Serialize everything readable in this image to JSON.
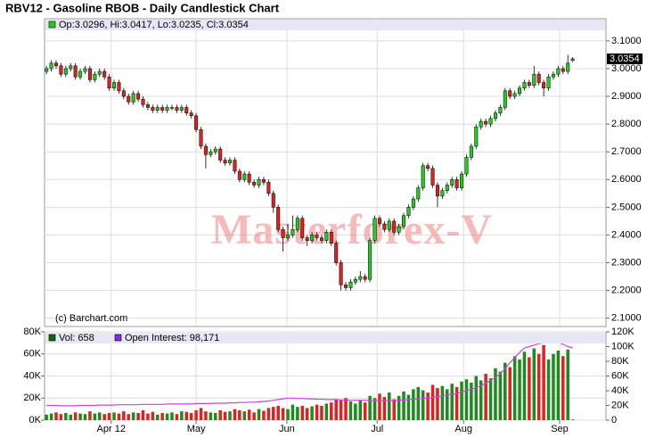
{
  "chart_data": {
    "type": "candlestick",
    "title": "RBV12 - Gasoline RBOB - Daily Candlestick Chart",
    "price_legend": "Op:3.0296, Hi:3.0417, Lo:3.0235, Cl:3.0354",
    "credit": "(c) Barchart.com",
    "watermark": "Masterforex-V",
    "up_color": "#22cc22",
    "down_color": "#dd2222",
    "grid": true,
    "xlim": [
      -0.4,
      115.9
    ],
    "xticks": [
      {
        "value": 13.4,
        "label": "Apr 12"
      },
      {
        "value": 31.0,
        "label": "May"
      },
      {
        "value": 49.8,
        "label": "Jun"
      },
      {
        "value": 68.5,
        "label": "Jul"
      },
      {
        "value": 86.4,
        "label": "Aug"
      },
      {
        "value": 106.3,
        "label": "Sep"
      }
    ],
    "ylim": [
      2.07,
      3.18
    ],
    "yticks": [
      {
        "value": 2.1,
        "label": "2.1000"
      },
      {
        "value": 2.2,
        "label": "2.2000"
      },
      {
        "value": 2.3,
        "label": "2.3000"
      },
      {
        "value": 2.4,
        "label": "2.4000"
      },
      {
        "value": 2.5,
        "label": "2.5000"
      },
      {
        "value": 2.6,
        "label": "2.6000"
      },
      {
        "value": 2.7,
        "label": "2.7000"
      },
      {
        "value": 2.8,
        "label": "2.8000"
      },
      {
        "value": 2.9,
        "label": "2.9000"
      },
      {
        "value": 3.0,
        "label": "3.0000"
      },
      {
        "value": 3.1,
        "label": "3.1000"
      }
    ],
    "open": [
      2.99,
      3.0,
      3.02,
      3.01,
      2.98,
      3.0,
      3.01,
      2.97,
      2.99,
      3.0,
      2.96,
      2.98,
      2.99,
      2.97,
      2.93,
      2.95,
      2.92,
      2.9,
      2.88,
      2.91,
      2.89,
      2.87,
      2.86,
      2.85,
      2.86,
      2.85,
      2.86,
      2.86,
      2.85,
      2.86,
      2.84,
      2.83,
      2.78,
      2.72,
      2.69,
      2.7,
      2.71,
      2.67,
      2.66,
      2.67,
      2.63,
      2.6,
      2.62,
      2.59,
      2.58,
      2.6,
      2.59,
      2.55,
      2.5,
      2.42,
      2.39,
      2.4,
      2.42,
      2.46,
      2.39,
      2.38,
      2.4,
      2.39,
      2.38,
      2.41,
      2.37,
      2.3,
      2.22,
      2.21,
      2.23,
      2.24,
      2.25,
      2.24,
      2.38,
      2.46,
      2.44,
      2.42,
      2.45,
      2.41,
      2.43,
      2.47,
      2.5,
      2.53,
      2.57,
      2.65,
      2.64,
      2.58,
      2.54,
      2.56,
      2.58,
      2.6,
      2.57,
      2.62,
      2.68,
      2.72,
      2.79,
      2.81,
      2.8,
      2.82,
      2.84,
      2.86,
      2.92,
      2.9,
      2.91,
      2.93,
      2.95,
      2.94,
      2.98,
      2.95,
      2.93,
      2.97,
      2.98,
      3.0,
      2.99,
      3.0296
    ],
    "high": [
      3.01,
      3.03,
      3.03,
      3.02,
      3.01,
      3.02,
      3.02,
      3.0,
      3.01,
      3.01,
      2.99,
      3.0,
      3.0,
      2.98,
      2.96,
      2.96,
      2.93,
      2.91,
      2.92,
      2.92,
      2.9,
      2.88,
      2.87,
      2.87,
      2.87,
      2.87,
      2.87,
      2.87,
      2.87,
      2.87,
      2.85,
      2.84,
      2.79,
      2.73,
      2.71,
      2.72,
      2.72,
      2.68,
      2.68,
      2.68,
      2.64,
      2.63,
      2.63,
      2.6,
      2.61,
      2.61,
      2.6,
      2.56,
      2.51,
      2.43,
      2.44,
      2.47,
      2.47,
      2.47,
      2.4,
      2.41,
      2.41,
      2.4,
      2.42,
      2.42,
      2.38,
      2.31,
      2.23,
      2.24,
      2.25,
      2.27,
      2.26,
      2.39,
      2.47,
      2.47,
      2.45,
      2.46,
      2.46,
      2.44,
      2.48,
      2.51,
      2.54,
      2.58,
      2.66,
      2.66,
      2.65,
      2.59,
      2.57,
      2.59,
      2.61,
      2.61,
      2.63,
      2.69,
      2.73,
      2.8,
      2.82,
      2.82,
      2.83,
      2.85,
      2.87,
      2.93,
      2.93,
      2.92,
      2.94,
      2.96,
      2.96,
      3.01,
      2.99,
      2.96,
      2.98,
      2.99,
      3.01,
      3.01,
      3.05,
      3.0417
    ],
    "low": [
      2.98,
      2.99,
      3.0,
      2.97,
      2.97,
      2.99,
      2.96,
      2.96,
      2.98,
      2.95,
      2.95,
      2.97,
      2.96,
      2.92,
      2.92,
      2.91,
      2.89,
      2.87,
      2.87,
      2.88,
      2.86,
      2.85,
      2.84,
      2.84,
      2.84,
      2.84,
      2.85,
      2.84,
      2.84,
      2.83,
      2.82,
      2.77,
      2.71,
      2.64,
      2.68,
      2.69,
      2.66,
      2.65,
      2.65,
      2.62,
      2.59,
      2.59,
      2.58,
      2.57,
      2.57,
      2.58,
      2.54,
      2.48,
      2.41,
      2.34,
      2.38,
      2.39,
      2.41,
      2.38,
      2.36,
      2.37,
      2.38,
      2.37,
      2.37,
      2.36,
      2.29,
      2.2,
      2.2,
      2.2,
      2.22,
      2.23,
      2.23,
      2.23,
      2.37,
      2.43,
      2.41,
      2.41,
      2.4,
      2.4,
      2.42,
      2.46,
      2.49,
      2.52,
      2.56,
      2.63,
      2.57,
      2.5,
      2.53,
      2.55,
      2.57,
      2.56,
      2.56,
      2.61,
      2.67,
      2.71,
      2.78,
      2.79,
      2.79,
      2.81,
      2.83,
      2.85,
      2.89,
      2.89,
      2.9,
      2.92,
      2.93,
      2.93,
      2.94,
      2.9,
      2.92,
      2.96,
      2.97,
      2.98,
      2.98,
      3.0235
    ],
    "close": [
      3.0,
      3.02,
      3.01,
      2.98,
      3.0,
      3.01,
      2.97,
      2.99,
      3.0,
      2.96,
      2.98,
      2.99,
      2.97,
      2.93,
      2.95,
      2.92,
      2.9,
      2.88,
      2.91,
      2.89,
      2.87,
      2.86,
      2.85,
      2.86,
      2.85,
      2.86,
      2.86,
      2.85,
      2.86,
      2.84,
      2.83,
      2.78,
      2.72,
      2.69,
      2.7,
      2.71,
      2.67,
      2.66,
      2.67,
      2.63,
      2.6,
      2.62,
      2.59,
      2.58,
      2.6,
      2.59,
      2.55,
      2.5,
      2.42,
      2.39,
      2.4,
      2.42,
      2.46,
      2.39,
      2.38,
      2.4,
      2.39,
      2.38,
      2.41,
      2.37,
      2.3,
      2.22,
      2.21,
      2.23,
      2.24,
      2.25,
      2.24,
      2.38,
      2.46,
      2.44,
      2.42,
      2.45,
      2.41,
      2.43,
      2.47,
      2.5,
      2.53,
      2.57,
      2.65,
      2.64,
      2.58,
      2.54,
      2.56,
      2.58,
      2.6,
      2.57,
      2.62,
      2.68,
      2.72,
      2.79,
      2.81,
      2.8,
      2.82,
      2.84,
      2.86,
      2.92,
      2.9,
      2.91,
      2.93,
      2.95,
      2.94,
      2.98,
      2.95,
      2.93,
      2.97,
      2.98,
      3.0,
      2.99,
      3.02,
      3.0354
    ],
    "volume": {
      "legend": "Vol: 658",
      "ylim": [
        0,
        80000
      ],
      "yticks": [
        {
          "value": 0,
          "label": "0K"
        },
        {
          "value": 20000,
          "label": "20K"
        },
        {
          "value": 40000,
          "label": "40K"
        },
        {
          "value": 60000,
          "label": "60K"
        },
        {
          "value": 80000,
          "label": "80K"
        }
      ],
      "values": [
        5000,
        6000,
        7000,
        5500,
        6500,
        5000,
        7000,
        6000,
        5500,
        8000,
        6000,
        7000,
        5500,
        6500,
        7000,
        6000,
        8000,
        5500,
        7000,
        6500,
        9000,
        6000,
        7500,
        5000,
        6500,
        6000,
        7000,
        5500,
        8000,
        7500,
        6500,
        9000,
        11000,
        8000,
        7000,
        6500,
        9000,
        7500,
        8000,
        10000,
        9000,
        8000,
        9500,
        7000,
        10000,
        8500,
        11000,
        12000,
        13000,
        11000,
        10000,
        14000,
        12000,
        13000,
        11000,
        12500,
        14000,
        13000,
        15000,
        16000,
        19000,
        18000,
        20000,
        17000,
        15000,
        18000,
        16000,
        22000,
        20000,
        24000,
        21000,
        25000,
        19000,
        22000,
        26000,
        23000,
        28000,
        30000,
        27000,
        25000,
        32000,
        29000,
        31000,
        28000,
        33000,
        30000,
        35000,
        37000,
        34000,
        40000,
        36000,
        42000,
        38000,
        47000,
        44000,
        52000,
        48000,
        58000,
        55000,
        62000,
        57000,
        65000,
        60000,
        68000,
        55000,
        60000,
        63000,
        58000,
        64000,
        658
      ]
    },
    "open_interest": {
      "legend": "Open Interest: 98,171",
      "color": "#cc44dd",
      "ylim": [
        0,
        120000
      ],
      "yticks": [
        {
          "value": 0,
          "label": "0"
        },
        {
          "value": 20000,
          "label": "20K"
        },
        {
          "value": 40000,
          "label": "40K"
        },
        {
          "value": 60000,
          "label": "60K"
        },
        {
          "value": 80000,
          "label": "80K"
        },
        {
          "value": 100000,
          "label": "100K"
        },
        {
          "value": 120000,
          "label": "120K"
        }
      ],
      "values": [
        20000,
        20000,
        20000,
        19500,
        19500,
        19500,
        19500,
        20000,
        20000,
        20000,
        20000,
        20500,
        20500,
        20500,
        20500,
        21000,
        21000,
        21000,
        21000,
        21000,
        21500,
        21500,
        21500,
        21500,
        21500,
        22000,
        22000,
        22000,
        22000,
        22000,
        22000,
        22500,
        22500,
        22500,
        22500,
        23000,
        23000,
        23000,
        23500,
        23500,
        24000,
        24000,
        24500,
        24500,
        25000,
        25500,
        26000,
        27000,
        28000,
        29000,
        30000,
        30000,
        29500,
        29500,
        29000,
        29000,
        28500,
        28500,
        28000,
        28000,
        28000,
        27500,
        27500,
        27000,
        27000,
        27000,
        27000,
        26500,
        26500,
        26500,
        26500,
        26500,
        27000,
        27000,
        27500,
        28000,
        28500,
        29000,
        29500,
        30000,
        31000,
        32000,
        33000,
        34000,
        35000,
        36000,
        38000,
        40000,
        42000,
        44000,
        47000,
        50000,
        54000,
        58000,
        63000,
        70000,
        78000,
        85000,
        92000,
        98000,
        100000,
        102000,
        104000,
        105000,
        107000,
        108000,
        106000,
        103000,
        100000,
        98171
      ]
    }
  }
}
